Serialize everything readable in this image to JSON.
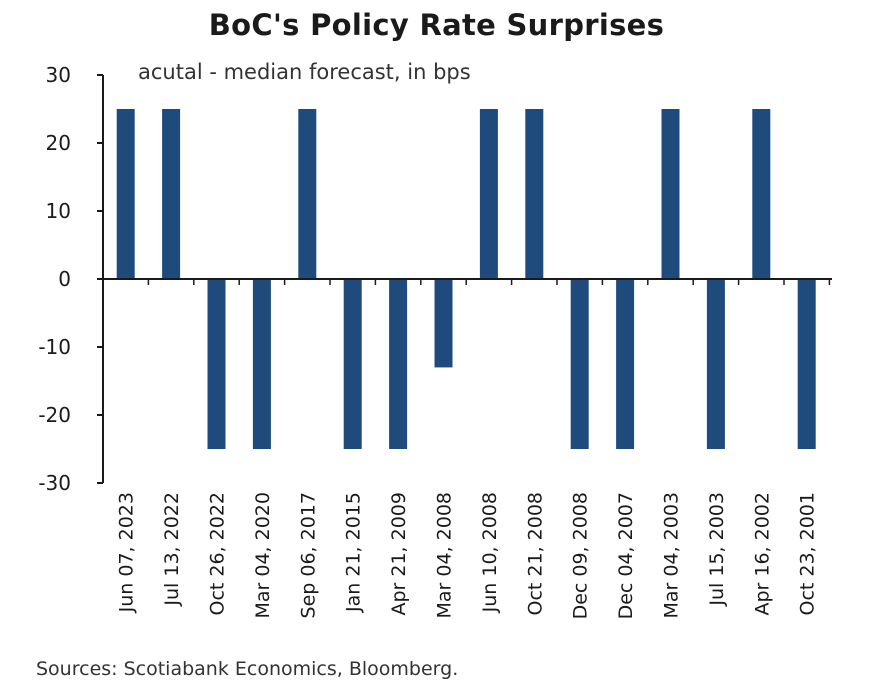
{
  "chart_data": {
    "type": "bar",
    "title": "BoC's Policy Rate Surprises",
    "subtitle": "acutal - median forecast, in bps",
    "source": "Sources: Scotiabank Economics, Bloomberg.",
    "categories": [
      "Jun 07, 2023",
      "Jul 13, 2022",
      "Oct 26, 2022",
      "Mar 04, 2020",
      "Sep 06, 2017",
      "Jan 21, 2015",
      "Apr 21, 2009",
      "Mar 04, 2008",
      "Jun 10, 2008",
      "Oct 21, 2008",
      "Dec 09, 2008",
      "Dec 04, 2007",
      "Mar 04, 2003",
      "Jul 15, 2003",
      "Apr 16, 2002",
      "Oct 23, 2001"
    ],
    "values": [
      25,
      25,
      -25,
      -25,
      25,
      -25,
      -25,
      -13,
      25,
      25,
      -25,
      -25,
      25,
      -25,
      25,
      -25
    ],
    "ylim": [
      -30,
      30
    ],
    "yticks": [
      30,
      20,
      10,
      0,
      -10,
      -20,
      -30
    ],
    "bar_color": "#1f4a7c",
    "grid": false,
    "xlabel": "",
    "ylabel": ""
  }
}
